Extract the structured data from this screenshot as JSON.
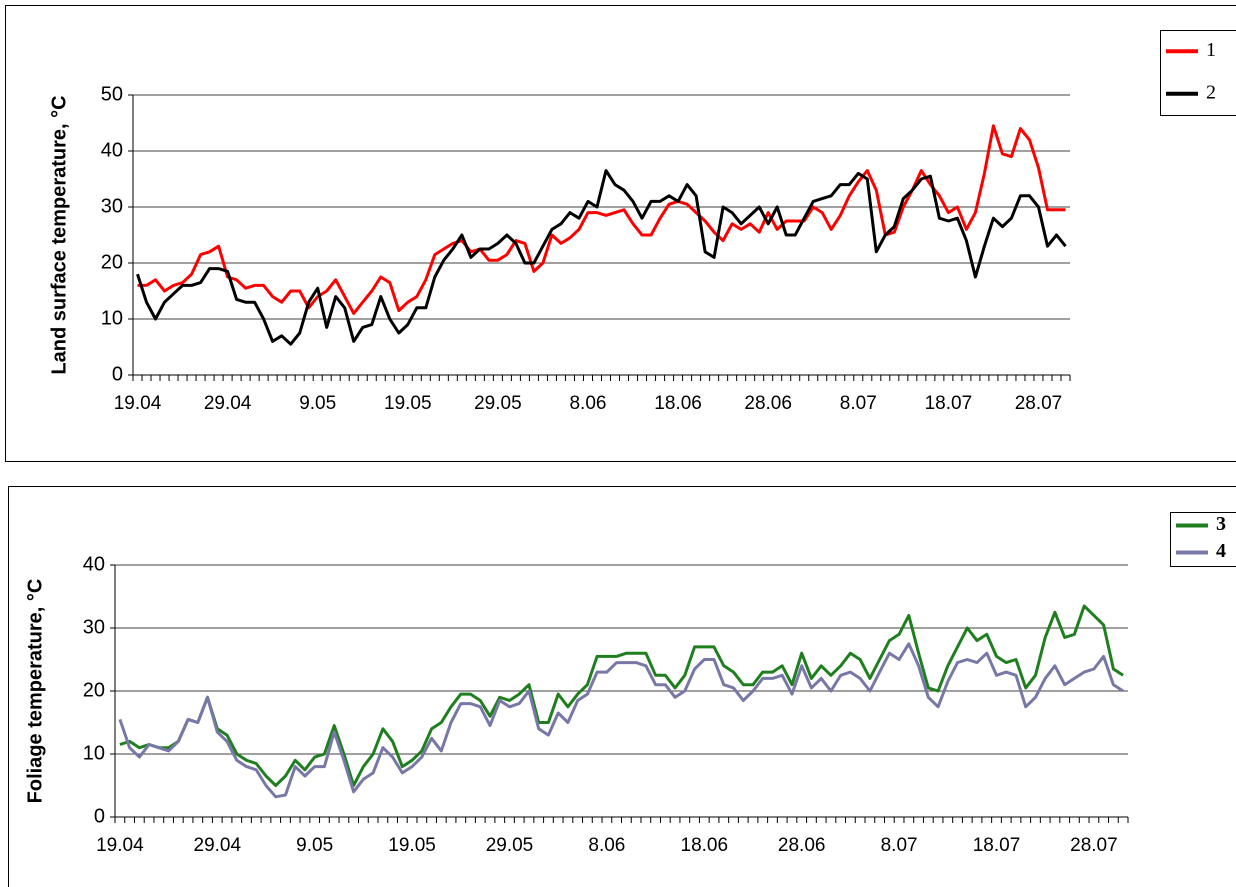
{
  "chart_data": [
    {
      "type": "line",
      "y_label": "Land surface temperature, °C",
      "categories": [
        "19.04",
        null,
        null,
        null,
        null,
        null,
        null,
        null,
        null,
        null,
        "29.04",
        null,
        null,
        null,
        null,
        null,
        null,
        null,
        null,
        null,
        "9.05",
        null,
        null,
        null,
        null,
        null,
        null,
        null,
        null,
        null,
        "19.05",
        null,
        null,
        null,
        null,
        null,
        null,
        null,
        null,
        null,
        "29.05",
        null,
        null,
        null,
        null,
        null,
        null,
        null,
        null,
        null,
        "8.06",
        null,
        null,
        null,
        null,
        null,
        null,
        null,
        null,
        null,
        "18.06",
        null,
        null,
        null,
        null,
        null,
        null,
        null,
        null,
        null,
        "28.06",
        null,
        null,
        null,
        null,
        null,
        null,
        null,
        null,
        null,
        "8.07",
        null,
        null,
        null,
        null,
        null,
        null,
        null,
        null,
        null,
        "18.07",
        null,
        null,
        null,
        null,
        null,
        null,
        null,
        null,
        null,
        "28.07",
        null,
        null,
        null
      ],
      "series": [
        {
          "name": "1",
          "color": "#ff0000",
          "values": [
            16,
            16,
            17,
            15,
            16,
            16.5,
            18,
            21.5,
            22,
            23,
            17.5,
            17,
            15.5,
            16,
            16,
            14,
            13,
            15,
            15,
            12,
            14,
            15,
            17,
            14,
            11,
            13,
            15,
            17.5,
            16.5,
            11.5,
            13,
            14,
            17,
            21.5,
            22.5,
            23.5,
            24,
            22,
            22.5,
            20.5,
            20.5,
            21.5,
            24,
            23.5,
            18.5,
            20,
            25,
            23.5,
            24.5,
            26,
            29,
            29,
            28.5,
            29,
            29.5,
            27,
            25,
            25,
            28,
            30.5,
            31,
            30.5,
            29,
            27.5,
            25.5,
            24,
            27,
            26,
            27,
            25.5,
            29,
            26,
            27.5,
            27.5,
            27.5,
            30,
            29,
            26,
            28.5,
            32,
            34.5,
            36.5,
            33,
            25,
            25.5,
            30,
            33,
            36.5,
            34,
            32,
            29,
            30,
            26,
            29,
            36,
            44.5,
            39.5,
            39,
            44,
            42,
            37,
            29.5,
            29.5,
            29.5
          ]
        },
        {
          "name": "2",
          "color": "#000000",
          "values": [
            18,
            13,
            10,
            13,
            14.5,
            16,
            16,
            16.5,
            19,
            19,
            18.5,
            13.5,
            13,
            13,
            10,
            6,
            7,
            5.5,
            7.5,
            13,
            15.5,
            8.5,
            14,
            12,
            6,
            8.5,
            9,
            14,
            10,
            7.5,
            9,
            12,
            12,
            17.5,
            20.5,
            22.5,
            25,
            21,
            22.5,
            22.5,
            23.5,
            25,
            23.5,
            20,
            20,
            23,
            26,
            27,
            29,
            28,
            31,
            30,
            36.5,
            34,
            33,
            31,
            28,
            31,
            31,
            32,
            31,
            34,
            32,
            22,
            21,
            30,
            29,
            27,
            28.5,
            30,
            27,
            30,
            25,
            25,
            28,
            31,
            31.5,
            32,
            34,
            34,
            36,
            35,
            22,
            25,
            26.5,
            31.5,
            33,
            35,
            35.5,
            28,
            27.5,
            28,
            24,
            17.5,
            23,
            28,
            26.5,
            28,
            32,
            32,
            30,
            23,
            25,
            23
          ]
        }
      ],
      "ylim": [
        0,
        50
      ],
      "yticks": [
        0,
        10,
        20,
        30,
        40,
        50
      ],
      "grid": true,
      "legend": "right"
    },
    {
      "type": "line",
      "y_label": "Foliage temperature, °C",
      "categories": [
        "19.04",
        null,
        null,
        null,
        null,
        null,
        null,
        null,
        null,
        null,
        "29.04",
        null,
        null,
        null,
        null,
        null,
        null,
        null,
        null,
        null,
        "9.05",
        null,
        null,
        null,
        null,
        null,
        null,
        null,
        null,
        null,
        "19.05",
        null,
        null,
        null,
        null,
        null,
        null,
        null,
        null,
        null,
        "29.05",
        null,
        null,
        null,
        null,
        null,
        null,
        null,
        null,
        null,
        "8.06",
        null,
        null,
        null,
        null,
        null,
        null,
        null,
        null,
        null,
        "18.06",
        null,
        null,
        null,
        null,
        null,
        null,
        null,
        null,
        null,
        "28.06",
        null,
        null,
        null,
        null,
        null,
        null,
        null,
        null,
        null,
        "8.07",
        null,
        null,
        null,
        null,
        null,
        null,
        null,
        null,
        null,
        "18.07",
        null,
        null,
        null,
        null,
        null,
        null,
        null,
        null,
        null,
        "28.07",
        null,
        null,
        null
      ],
      "series": [
        {
          "name": "3",
          "color": "#1f7f1f",
          "values": [
            11.5,
            12,
            11,
            11.5,
            11,
            11,
            12,
            15.5,
            15,
            19,
            14,
            13,
            10,
            9,
            8.5,
            6.5,
            5,
            6.5,
            9,
            7.5,
            9.5,
            10,
            14.5,
            10,
            5,
            8,
            10,
            14,
            12,
            8,
            9,
            10.5,
            14,
            15,
            17.5,
            19.5,
            19.5,
            18.5,
            16,
            19,
            18.5,
            19.5,
            21,
            15,
            15,
            19.5,
            17.5,
            19.5,
            21,
            25.5,
            25.5,
            25.5,
            26,
            26,
            26,
            22.5,
            22.5,
            20.5,
            22.5,
            27,
            27,
            27,
            24,
            23,
            21,
            21,
            23,
            23,
            24,
            21,
            26,
            22,
            24,
            22.5,
            24,
            26,
            25,
            22,
            25,
            28,
            29,
            32,
            26,
            20.5,
            20,
            24,
            27,
            30,
            28,
            29,
            25.5,
            24.5,
            25,
            20.5,
            22.5,
            28.5,
            32.5,
            28.5,
            29,
            33.5,
            32,
            30.5,
            23.5,
            22.5
          ]
        },
        {
          "name": "4",
          "color": "#7878a8",
          "values": [
            15.5,
            11,
            9.5,
            11.5,
            11,
            10.5,
            12,
            15.5,
            15,
            19,
            13.5,
            12,
            9,
            8,
            7.5,
            5,
            3.2,
            3.5,
            8,
            6.5,
            8,
            8,
            13.5,
            9,
            4,
            6,
            7,
            11,
            9.5,
            7,
            8,
            9.5,
            12.5,
            10.5,
            15,
            18,
            18,
            17.5,
            14.5,
            18.5,
            17.5,
            18,
            20,
            14,
            13,
            16.5,
            15,
            18.5,
            19.5,
            23,
            23,
            24.5,
            24.5,
            24.5,
            24,
            21,
            21,
            19,
            20,
            23.5,
            25,
            25,
            21,
            20.5,
            18.5,
            20,
            22,
            22,
            22.5,
            19.5,
            24,
            20.5,
            22,
            20,
            22.5,
            23,
            22,
            20,
            23,
            26,
            25,
            27.5,
            24,
            19,
            17.5,
            21.5,
            24.5,
            25,
            24.5,
            26,
            22.5,
            23,
            22.5,
            17.5,
            19,
            22,
            24,
            21,
            22,
            23,
            23.5,
            25.5,
            21,
            20
          ]
        }
      ],
      "ylim": [
        0,
        40
      ],
      "yticks": [
        0,
        10,
        20,
        30,
        40
      ],
      "grid": true,
      "legend": "right"
    }
  ]
}
